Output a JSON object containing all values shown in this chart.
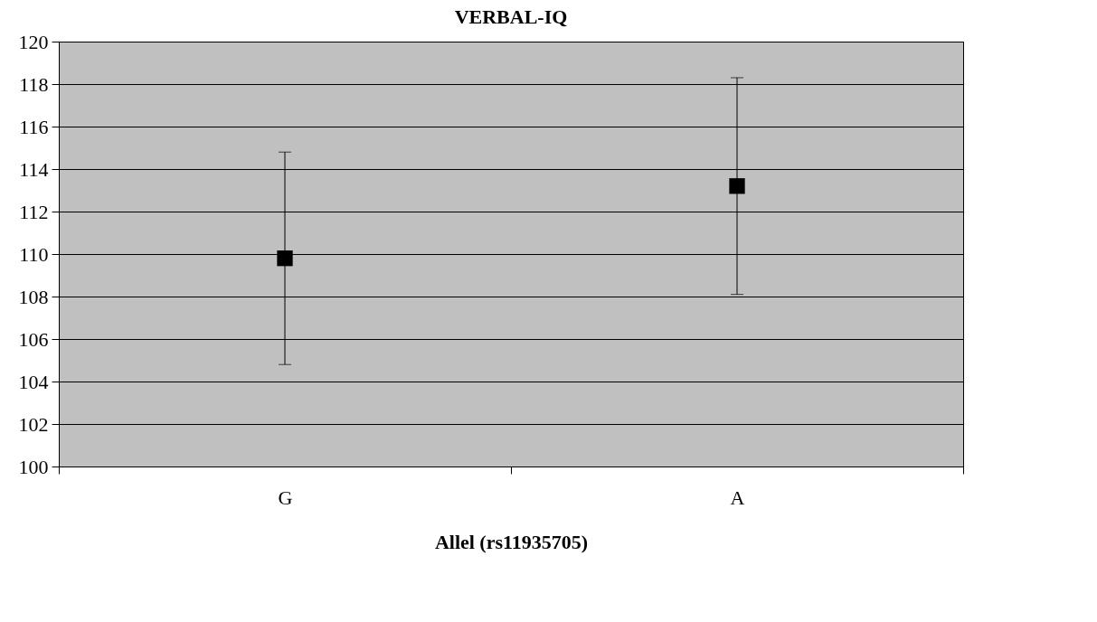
{
  "chart_data": {
    "type": "scatter",
    "title": "VERBAL-IQ",
    "xlabel": "Allel (rs11935705)",
    "categories": [
      "G",
      "A"
    ],
    "series": [
      {
        "color": "#000000",
        "values": [
          109.8,
          113.2
        ],
        "errors": [
          5.0,
          5.1
        ]
      }
    ],
    "ylim": [
      100,
      120
    ],
    "yticks": [
      100,
      102,
      104,
      106,
      108,
      110,
      112,
      114,
      116,
      118,
      120
    ],
    "grid": "y",
    "marker": "square"
  }
}
